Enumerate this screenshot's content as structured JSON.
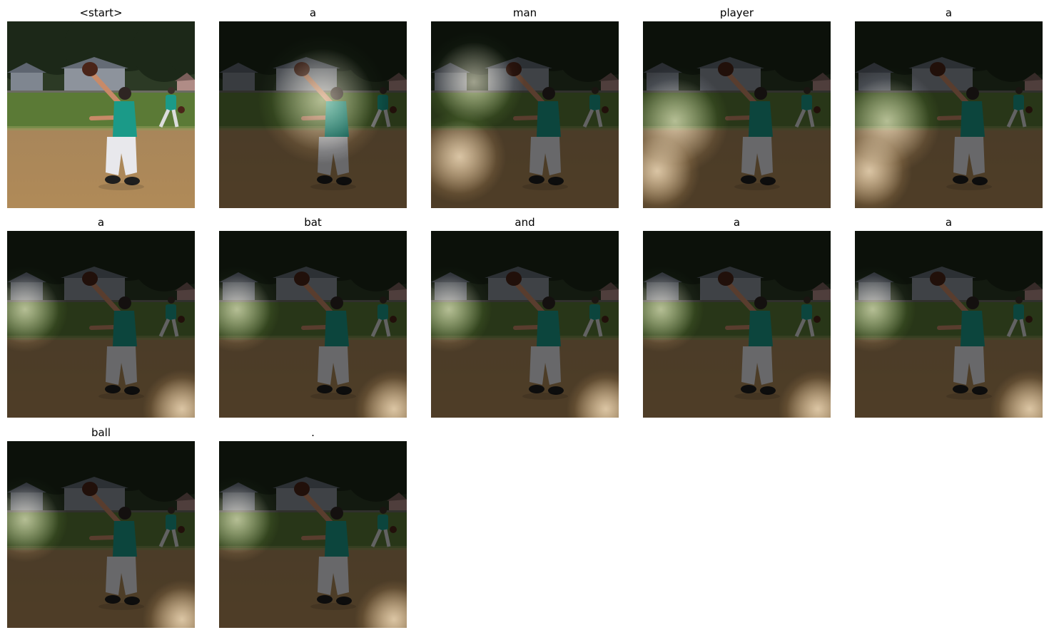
{
  "figure": {
    "panels": [
      {
        "word": "<start>",
        "attention_overlay": false,
        "focus_region": "none"
      },
      {
        "word": "a",
        "attention_overlay": true,
        "focus_region": "center-figure"
      },
      {
        "word": "man",
        "attention_overlay": true,
        "focus_region": "upper-left"
      },
      {
        "word": "player",
        "attention_overlay": true,
        "focus_region": "left"
      },
      {
        "word": "a",
        "attention_overlay": true,
        "focus_region": "left"
      },
      {
        "word": "a",
        "attention_overlay": true,
        "focus_region": "left-and-bottom-right"
      },
      {
        "word": "bat",
        "attention_overlay": true,
        "focus_region": "left-and-bottom-right"
      },
      {
        "word": "and",
        "attention_overlay": true,
        "focus_region": "left-and-bottom-right"
      },
      {
        "word": "a",
        "attention_overlay": true,
        "focus_region": "left-and-bottom-right"
      },
      {
        "word": "a",
        "attention_overlay": true,
        "focus_region": "left-and-bottom-right"
      },
      {
        "word": "ball",
        "attention_overlay": true,
        "focus_region": "left-and-bottom-right"
      },
      {
        "word": ".",
        "attention_overlay": true,
        "focus_region": "left-and-bottom-right"
      }
    ]
  },
  "colors": {
    "background": "#ffffff",
    "title_text": "#000000",
    "sky": "#2c3a25",
    "tree_dark": "#1c2818",
    "house": "#7f8690",
    "grass": "#5b7a36",
    "dirt": "#b08a58",
    "jersey": "#1b9a88",
    "pants": "#e8e8ec",
    "glove": "#4a2418",
    "skin": "#c88a68",
    "overlay_dark": "#000000",
    "overlay_light": "#fff6e2"
  }
}
